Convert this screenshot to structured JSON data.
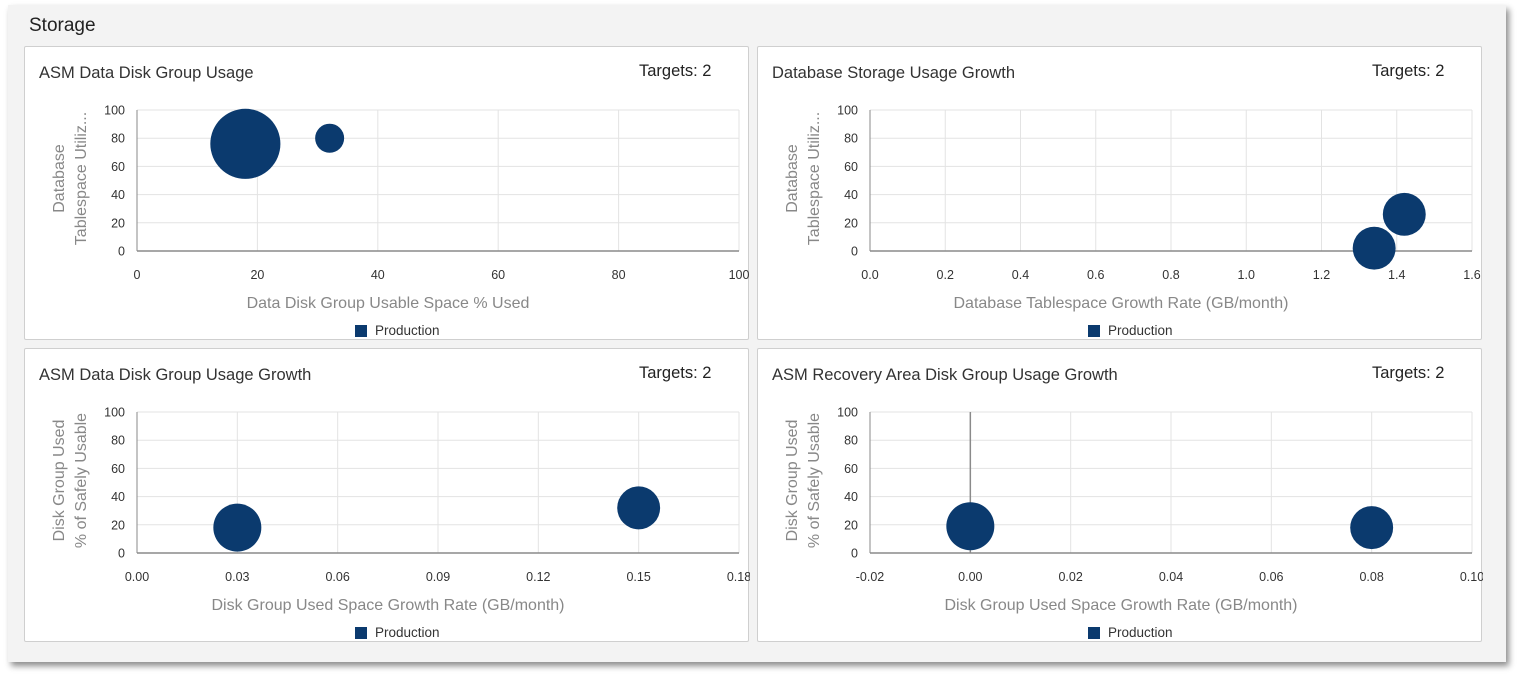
{
  "region": {
    "title": "Storage"
  },
  "panels": [
    {
      "title": "ASM Data Disk Group Usage",
      "targets": "Targets: 2"
    },
    {
      "title": "Database Storage Usage Growth",
      "targets": "Targets: 2"
    },
    {
      "title": "ASM Data Disk Group Usage Growth",
      "targets": "Targets: 2"
    },
    {
      "title": "ASM Recovery Area Disk Group Usage Growth",
      "targets": "Targets: 2"
    }
  ],
  "colors": {
    "series": "#0b3a6e",
    "grid": "#e3e3e3",
    "axis": "#8a8a8a"
  },
  "chart_data": [
    {
      "type": "scatter",
      "title": "ASM Data Disk Group Usage",
      "xlabel": "Data Disk Group Usable Space % Used",
      "ylabel": [
        "Database",
        "Tablespace Utiliz..."
      ],
      "xlim": [
        0,
        100
      ],
      "ylim": [
        0,
        100
      ],
      "xticks": [
        "0",
        "20",
        "40",
        "60",
        "80",
        "100"
      ],
      "yticks": [
        "0",
        "20",
        "40",
        "60",
        "80",
        "100"
      ],
      "grid": true,
      "legend": "bottom",
      "series": [
        {
          "name": "Production",
          "points": [
            {
              "x": 18,
              "y": 76,
              "size": 10
            },
            {
              "x": 32,
              "y": 80,
              "size": 1
            }
          ]
        }
      ]
    },
    {
      "type": "scatter",
      "title": "Database Storage Usage Growth",
      "xlabel": "Database Tablespace Growth Rate (GB/month)",
      "ylabel": [
        "Database",
        "Tablespace Utiliz..."
      ],
      "xlim": [
        0,
        1.6
      ],
      "ylim": [
        0,
        100
      ],
      "xticks": [
        "0.0",
        "0.2",
        "0.4",
        "0.6",
        "0.8",
        "1.0",
        "1.2",
        "1.4",
        "1.6"
      ],
      "yticks": [
        "0",
        "20",
        "40",
        "60",
        "80",
        "100"
      ],
      "grid": true,
      "legend": "bottom",
      "series": [
        {
          "name": "Production",
          "points": [
            {
              "x": 1.34,
              "y": 2,
              "size": 3
            },
            {
              "x": 1.42,
              "y": 26,
              "size": 3
            }
          ]
        }
      ]
    },
    {
      "type": "scatter",
      "title": "ASM Data Disk Group Usage Growth",
      "xlabel": "Disk Group Used Space Growth Rate (GB/month)",
      "ylabel": [
        "Disk Group Used",
        "% of Safely Usable"
      ],
      "xlim": [
        0,
        0.18
      ],
      "ylim": [
        0,
        100
      ],
      "xticks": [
        "0.00",
        "0.03",
        "0.06",
        "0.09",
        "0.12",
        "0.15",
        "0.18"
      ],
      "yticks": [
        "0",
        "20",
        "40",
        "60",
        "80",
        "100"
      ],
      "grid": true,
      "legend": "bottom",
      "series": [
        {
          "name": "Production",
          "points": [
            {
              "x": 0.03,
              "y": 18,
              "size": 4
            },
            {
              "x": 0.15,
              "y": 32,
              "size": 3
            }
          ]
        }
      ]
    },
    {
      "type": "scatter",
      "title": "ASM Recovery Area Disk Group Usage Growth",
      "xlabel": "Disk Group Used Space Growth Rate (GB/month)",
      "ylabel": [
        "Disk Group Used",
        "% of Safely Usable"
      ],
      "xlim": [
        -0.02,
        0.1
      ],
      "ylim": [
        0,
        100
      ],
      "xticks": [
        "-0.02",
        "0.00",
        "0.02",
        "0.04",
        "0.06",
        "0.08",
        "0.10"
      ],
      "yticks": [
        "0",
        "20",
        "40",
        "60",
        "80",
        "100"
      ],
      "grid": true,
      "legend": "bottom",
      "series": [
        {
          "name": "Production",
          "points": [
            {
              "x": 0.0,
              "y": 19,
              "size": 4
            },
            {
              "x": 0.08,
              "y": 18,
              "size": 3
            }
          ]
        }
      ]
    }
  ]
}
